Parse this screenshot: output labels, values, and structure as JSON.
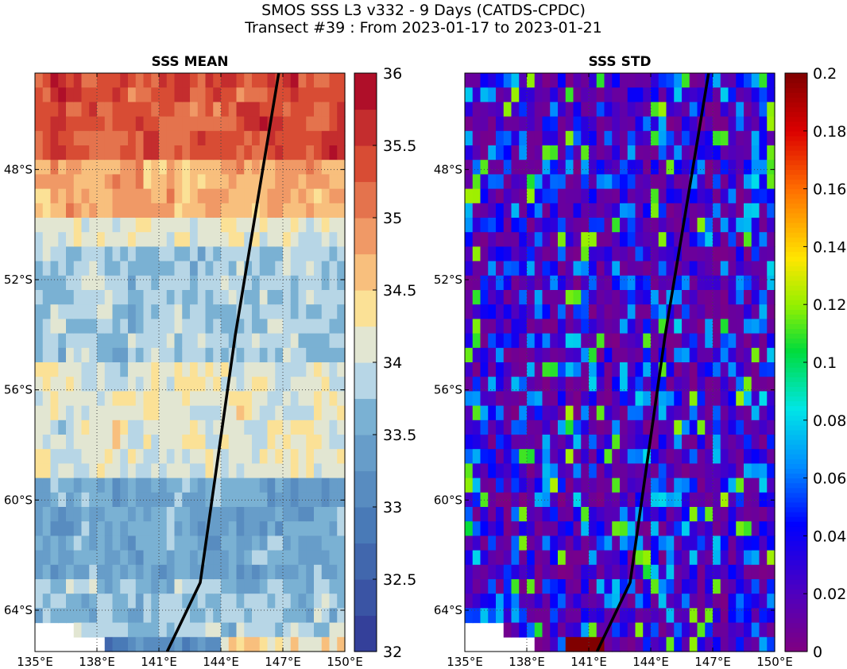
{
  "figure": {
    "title_line1": "SMOS SSS L3 v332 - 9 Days (CATDS-CPDC)",
    "title_line2": "Transect #39 : From 2023-01-17 to 2023-01-21"
  },
  "chart_data": [
    {
      "type": "heatmap",
      "title": "SSS MEAN",
      "xlabel": "",
      "ylabel": "",
      "xlim": [
        135,
        150
      ],
      "ylim": [
        -65.5,
        -44.5
      ],
      "x_ticks": [
        "135°E",
        "138°E",
        "141°E",
        "144°E",
        "147°E",
        "150°E"
      ],
      "y_ticks": [
        "48°S",
        "52°S",
        "56°S",
        "60°S",
        "64°S"
      ],
      "colorbar": {
        "range": [
          32,
          36
        ],
        "ticks": [
          "32",
          "32.5",
          "33",
          "33.5",
          "34",
          "34.5",
          "35",
          "35.5",
          "36"
        ]
      },
      "grid": true,
      "transect": {
        "name": "Transect #39",
        "lon": [
          141.4,
          143.0,
          144.7,
          146.8
        ],
        "lat": [
          -65.5,
          -63.0,
          -54.0,
          -44.5
        ]
      }
    },
    {
      "type": "heatmap",
      "title": "SSS STD",
      "xlabel": "",
      "ylabel": "",
      "xlim": [
        135,
        150
      ],
      "ylim": [
        -65.5,
        -44.5
      ],
      "x_ticks": [
        "135°E",
        "138°E",
        "141°E",
        "144°E",
        "147°E",
        "150°E"
      ],
      "y_ticks": [
        "48°S",
        "52°S",
        "56°S",
        "60°S",
        "64°S"
      ],
      "colorbar": {
        "range": [
          0,
          0.2
        ],
        "ticks": [
          "0",
          "0.02",
          "0.04",
          "0.06",
          "0.08",
          "0.1",
          "0.12",
          "0.14",
          "0.16",
          "0.18",
          "0.2"
        ]
      },
      "grid": true,
      "transect": {
        "name": "Transect #39",
        "lon": [
          141.4,
          143.0,
          144.7,
          146.8
        ],
        "lat": [
          -65.5,
          -63.0,
          -54.0,
          -44.5
        ]
      }
    }
  ]
}
